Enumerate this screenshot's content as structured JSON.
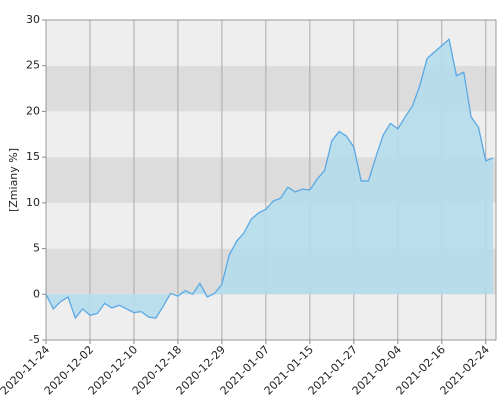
{
  "chart_data": {
    "type": "area",
    "y_label": "[Zmiany %]",
    "categories": [
      "2020-11-24",
      null,
      null,
      null,
      null,
      null,
      "2020-12-02",
      null,
      null,
      null,
      null,
      null,
      "2020-12-10",
      null,
      null,
      null,
      null,
      null,
      "2020-12-18",
      null,
      null,
      null,
      null,
      null,
      "2020-12-29",
      null,
      null,
      null,
      null,
      null,
      "2021-01-07",
      null,
      null,
      null,
      null,
      null,
      "2021-01-15",
      null,
      null,
      null,
      null,
      null,
      "2021-01-27",
      null,
      null,
      null,
      null,
      null,
      "2021-02-04",
      null,
      null,
      null,
      null,
      null,
      "2021-02-16",
      null,
      null,
      null,
      null,
      null,
      "2021-02-24",
      null
    ],
    "values": [
      0,
      -1.6,
      -0.8,
      -0.3,
      -2.6,
      -1.6,
      -2.3,
      -2.1,
      -1.0,
      -1.5,
      -1.2,
      -1.6,
      -2.0,
      -1.9,
      -2.5,
      -2.6,
      -1.3,
      0.1,
      -0.2,
      0.4,
      0,
      1.2,
      -0.3,
      0.1,
      1.1,
      4.3,
      5.8,
      6.7,
      8.2,
      8.9,
      9.3,
      10.2,
      10.5,
      11.7,
      11.2,
      11.5,
      11.4,
      12.6,
      13.5,
      16.8,
      17.8,
      17.3,
      16.1,
      12.4,
      12.4,
      15.0,
      17.4,
      18.7,
      18.1,
      19.4,
      20.6,
      22.8,
      25.8,
      26.5,
      27.2,
      27.9,
      23.9,
      24.3,
      19.4,
      18.3,
      14.6,
      14.9
    ],
    "color": "#5ba8e3",
    "fill_color": "#b5dcec",
    "ylim": [
      -5,
      30
    ],
    "yticks": [
      -5,
      0,
      5,
      10,
      15,
      20,
      25,
      30
    ],
    "grid": true
  }
}
